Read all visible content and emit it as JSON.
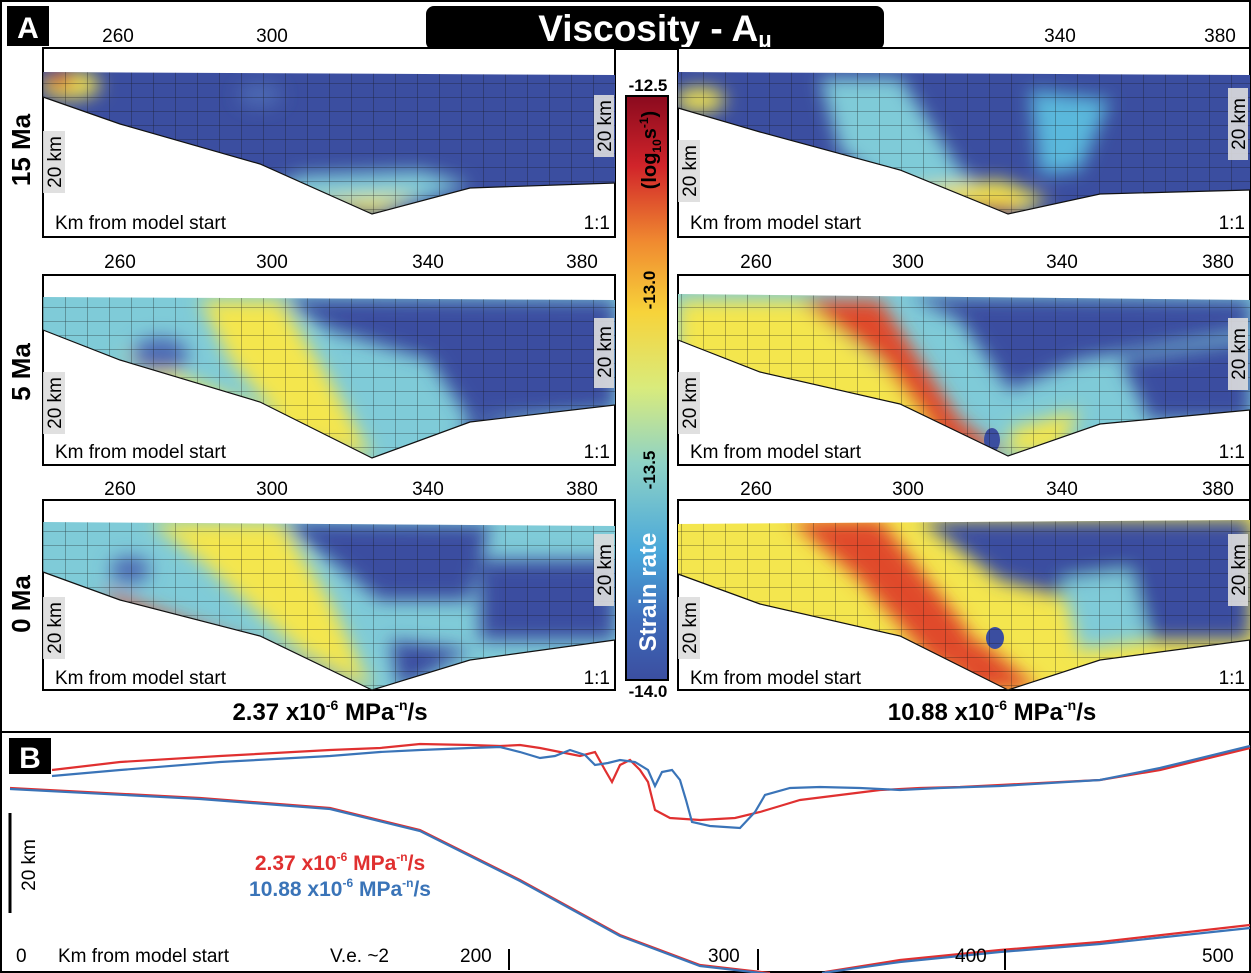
{
  "title": "Viscosity - A",
  "title_sub": "μ",
  "panel_a_label": "A",
  "panel_b_label": "B",
  "panel_common": {
    "axis_label": "Km from model start",
    "scale": "1:1",
    "depth_label": "20 km"
  },
  "ticks_top": [
    "260",
    "300",
    "340",
    "380"
  ],
  "rows": [
    {
      "time": "15 Ma"
    },
    {
      "time": "5 Ma"
    },
    {
      "time": "0 Ma"
    }
  ],
  "columns": [
    {
      "label_main": "2.37 x10",
      "label_exp": "-6",
      "label_unit": " MPa",
      "label_unit_exp": "-n",
      "label_tail": "/s"
    },
    {
      "label_main": "10.88 x10",
      "label_exp": "-6",
      "label_unit": " MPa",
      "label_unit_exp": "-n",
      "label_tail": "/s"
    }
  ],
  "colorbar": {
    "title": "Strain rate",
    "unit_open": "(log",
    "unit_sub": "10",
    "unit_s": "s",
    "unit_exp": "-1",
    "unit_close": ")",
    "ticks": [
      "-12.5",
      "-13.0",
      "-13.5",
      "-14.0"
    ],
    "colors": [
      "#8a0a1e",
      "#c8202a",
      "#e8502a",
      "#f59a30",
      "#f7d23a",
      "#f3ec50",
      "#d8ec8a",
      "#8fd3c8",
      "#5ab8dc",
      "#3c7cc4",
      "#3b4ea0"
    ]
  },
  "panel_b": {
    "xlabel": "Km from model start",
    "ve": "V.e. ~2",
    "depth_label": "20 km",
    "ticks": [
      "0",
      "200",
      "300",
      "400",
      "500"
    ],
    "legend": [
      {
        "text": "2.37 x10",
        "exp": "-6",
        "unit": " MPa",
        "unit_exp": "-n",
        "tail": "/s",
        "color": "#e03030"
      },
      {
        "text": "10.88 x10",
        "exp": "-6",
        "unit": " MPa",
        "unit_exp": "-n",
        "tail": "/s",
        "color": "#3a74b8"
      }
    ]
  },
  "colors": {
    "background_dark": "#3b4ea0",
    "cyan": "#7fcbd8",
    "yellow": "#f4e64e",
    "red": "#e04a2c",
    "series_red": "#e03030",
    "series_blue": "#3a74b8"
  }
}
